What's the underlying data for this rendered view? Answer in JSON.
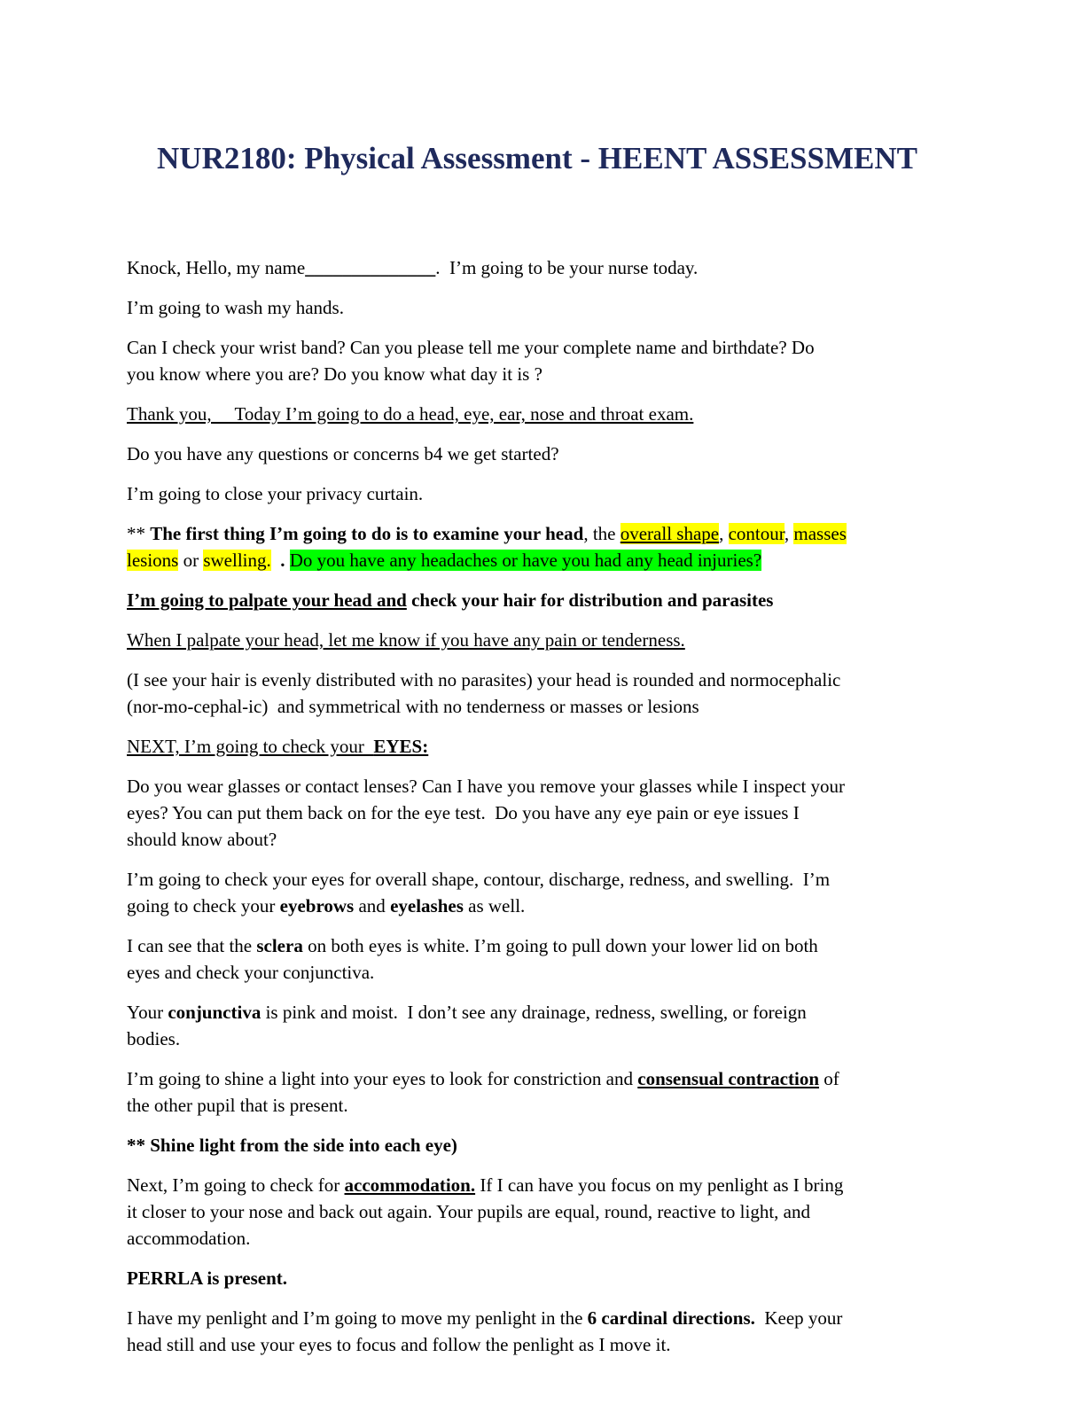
{
  "title": "NUR2180: Physical Assessment - HEENT ASSESSMENT",
  "highlight_colors": {
    "yellow": "#ffff00",
    "green": "#00ff00"
  },
  "title_color": "#1f2a5c",
  "paragraphs": [
    [
      [
        {
          "t": "Knock, Hello, my name"
        },
        {
          "t": "______________",
          "b": 1
        },
        {
          "t": ".  I’m going to be your nurse today."
        }
      ]
    ],
    [
      [
        {
          "t": "I’m going to wash my hands."
        }
      ]
    ],
    [
      [
        {
          "t": "Can I check your wrist band? Can you please tell me your complete name and birthdate? Do"
        }
      ],
      [
        {
          "t": "you know where you are? Do you know what day it is ?"
        }
      ]
    ],
    [
      [
        {
          "t": "Thank you,     Today I’m going to do a head, eye, ear, nose and throat exam.",
          "u": 1
        }
      ]
    ],
    [
      [
        {
          "t": "Do you have any questions or concerns b4 we get started?"
        }
      ]
    ],
    [
      [
        {
          "t": "I’m going to close your privacy curtain."
        }
      ]
    ],
    [
      [
        {
          "t": "** "
        },
        {
          "t": "The first thing I’m going to do is to examine your head",
          "b": 1
        },
        {
          "t": ", the "
        },
        {
          "t": "overall shape",
          "u": 1,
          "h": "y"
        },
        {
          "t": ", "
        },
        {
          "t": "contour",
          "h": "y"
        },
        {
          "t": ", "
        },
        {
          "t": "masses",
          "h": "y"
        }
      ],
      [
        {
          "t": "lesions",
          "h": "y"
        },
        {
          "t": " or "
        },
        {
          "t": "swelling.",
          "h": "y"
        },
        {
          "t": "  "
        },
        {
          "t": ". ",
          "b": 1
        },
        {
          "t": "Do you have any headaches or have you had any head injuries?",
          "h": "g"
        }
      ]
    ],
    [
      [
        {
          "t": "I’m going to palpate your head and",
          "b": 1,
          "u": 1
        },
        {
          "t": " check your hair for distribution and parasites",
          "b": 1
        }
      ]
    ],
    [
      [
        {
          "t": "When I palpate your head, let me know if you have any pain or tenderness.",
          "u": 1
        }
      ]
    ],
    [
      [
        {
          "t": "(I see your hair is evenly distributed with no parasites) your head is rounded and normocephalic"
        }
      ],
      [
        {
          "t": "(nor-mo-cephal-ic)  and symmetrical with no tenderness or masses or lesions"
        }
      ]
    ],
    [
      [
        {
          "t": "NEXT, I’m going to check your  ",
          "u": 1
        },
        {
          "t": "EYES:",
          "u": 1,
          "b": 1
        }
      ]
    ],
    [
      [
        {
          "t": "Do you wear glasses or contact lenses? Can I have you remove your glasses while I inspect your"
        }
      ],
      [
        {
          "t": "eyes? You can put them back on for the eye test.  Do you have any eye pain or eye issues I"
        }
      ],
      [
        {
          "t": "should know about?"
        }
      ]
    ],
    [
      [
        {
          "t": "I’m going to check your eyes for overall shape, contour, discharge, redness, and swelling.  I’m"
        }
      ],
      [
        {
          "t": "going to check your "
        },
        {
          "t": "eyebrows",
          "b": 1
        },
        {
          "t": " and "
        },
        {
          "t": "eyelashes",
          "b": 1
        },
        {
          "t": " as well."
        }
      ]
    ],
    [
      [
        {
          "t": "I can see that the "
        },
        {
          "t": "sclera",
          "b": 1
        },
        {
          "t": " on both eyes is white. I’m going to pull down your lower lid on both"
        }
      ],
      [
        {
          "t": "eyes and check your conjunctiva."
        }
      ]
    ],
    [
      [
        {
          "t": "Your "
        },
        {
          "t": "conjunctiva",
          "b": 1
        },
        {
          "t": " is pink and moist.  I don’t see any drainage, redness, swelling, or foreign"
        }
      ],
      [
        {
          "t": "bodies."
        }
      ]
    ],
    [
      [
        {
          "t": "I’m going to shine a light into your eyes to look for constriction and "
        },
        {
          "t": "consensual contraction",
          "b": 1,
          "u": 1
        },
        {
          "t": " of"
        }
      ],
      [
        {
          "t": "the other pupil that is present."
        }
      ]
    ],
    [
      [
        {
          "t": "** Shine light from the side into each eye)",
          "b": 1
        }
      ]
    ],
    [
      [
        {
          "t": "Next, I’m going to check for "
        },
        {
          "t": "accommodation.",
          "b": 1,
          "u": 1
        },
        {
          "t": " If I can have you focus on my penlight as I bring"
        }
      ],
      [
        {
          "t": "it closer to your nose and back out again. Your pupils are equal, round, reactive to light, and"
        }
      ],
      [
        {
          "t": "accommodation."
        }
      ]
    ],
    [
      [
        {
          "t": "PERRLA is present.",
          "b": 1
        }
      ]
    ],
    [
      [
        {
          "t": "I have my penlight and I’m going to move my penlight in the "
        },
        {
          "t": "6 cardinal directions.",
          "b": 1
        },
        {
          "t": "  Keep your"
        }
      ],
      [
        {
          "t": "head still and use your eyes to focus and follow the penlight as I move it."
        }
      ]
    ]
  ]
}
